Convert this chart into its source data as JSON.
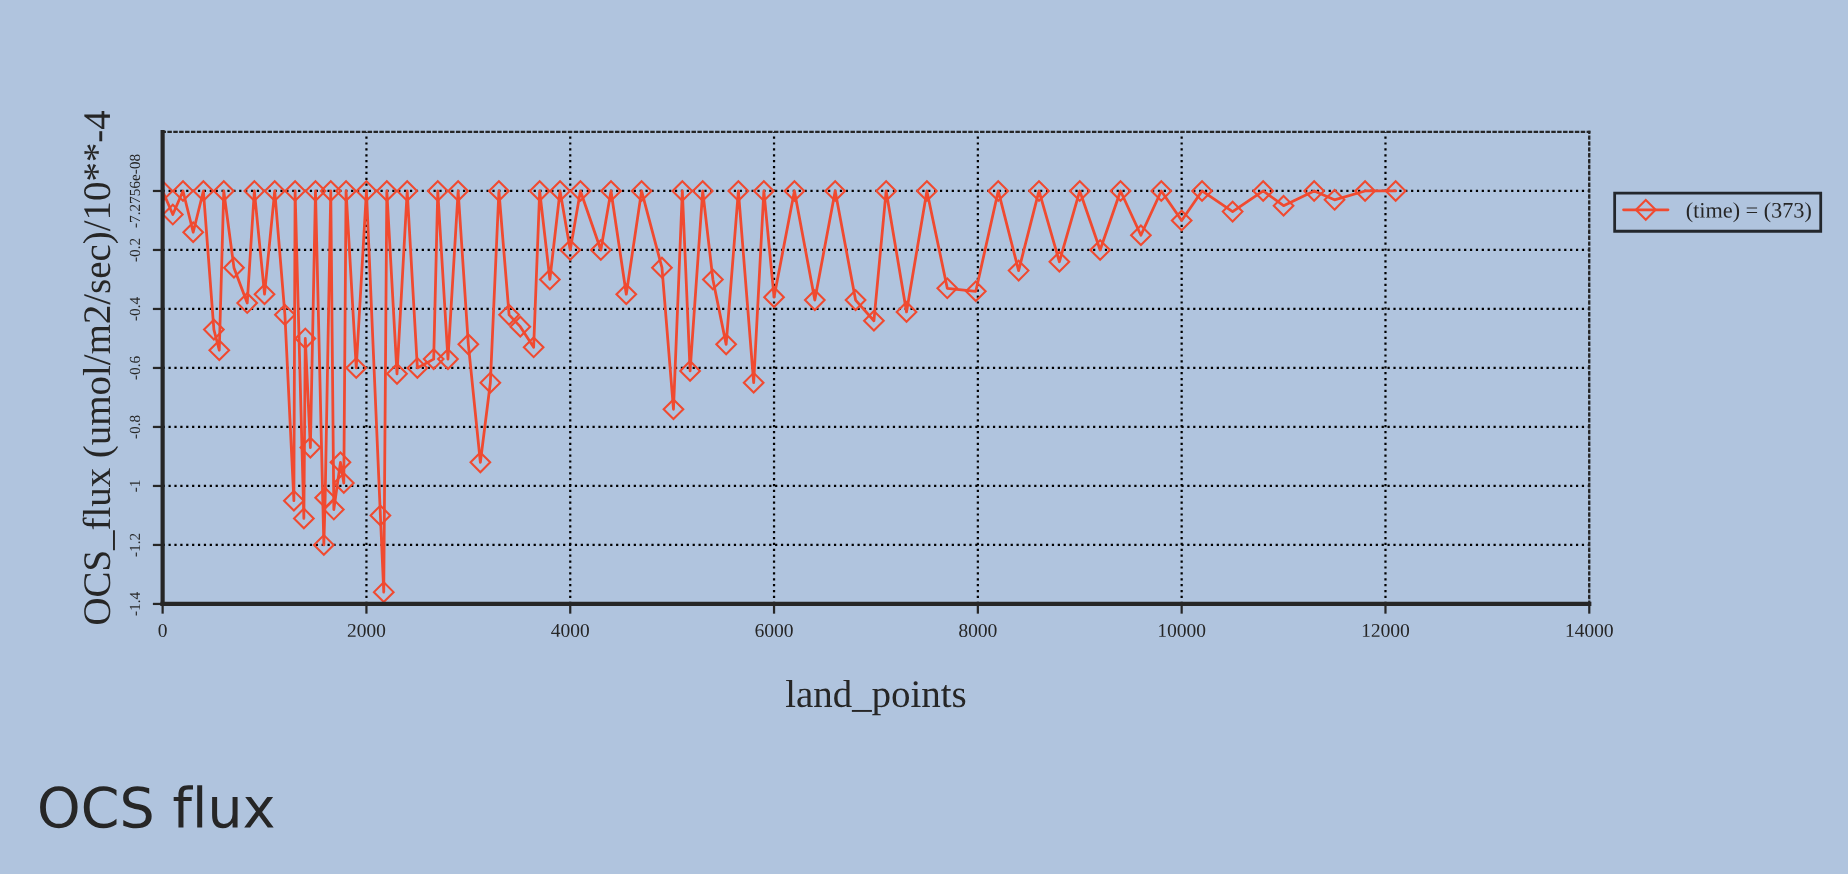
{
  "chart_data": {
    "type": "line",
    "title": "OCS flux",
    "xlabel": "land_points",
    "ylabel": "OCS_flux (umol/m2/sec)/10**-4",
    "x": [
      0,
      100,
      200,
      300,
      400,
      503,
      556,
      600,
      700,
      830,
      900,
      1000,
      1100,
      1200,
      1288,
      1300,
      1386,
      1400,
      1450,
      1500,
      1582,
      1595,
      1650,
      1680,
      1745,
      1778,
      1800,
      1900,
      2000,
      2137,
      2170,
      2200,
      2300,
      2400,
      2500,
      2660,
      2700,
      2800,
      2900,
      3000,
      3118,
      3216,
      3300,
      3400,
      3510,
      3641,
      3700,
      3800,
      3900,
      4000,
      4100,
      4300,
      4400,
      4550,
      4700,
      4900,
      5013,
      5100,
      5176,
      5300,
      5400,
      5530,
      5650,
      5800,
      5900,
      6000,
      6200,
      6400,
      6600,
      6800,
      6980,
      7100,
      7300,
      7500,
      7700,
      7980,
      8200,
      8400,
      8600,
      8800,
      9000,
      9200,
      9400,
      9600,
      9800,
      10000,
      10200,
      10500,
      10800,
      11000,
      11300,
      11500,
      11800,
      12100
    ],
    "series": [
      {
        "name": "(time) = (373)",
        "color": "#f04a30",
        "values": [
          0,
          -0.08,
          0,
          -0.14,
          0,
          -0.47,
          -0.54,
          0,
          -0.26,
          -0.38,
          0,
          -0.35,
          0,
          -0.42,
          -1.05,
          0,
          -1.11,
          -0.5,
          -0.87,
          0,
          -1.2,
          -1.04,
          0,
          -1.08,
          -0.92,
          -0.99,
          0,
          -0.6,
          0,
          -1.1,
          -1.36,
          0,
          -0.62,
          0,
          -0.6,
          -0.57,
          0,
          -0.57,
          0,
          -0.52,
          -0.92,
          -0.65,
          0,
          -0.42,
          -0.46,
          -0.53,
          0,
          -0.3,
          0,
          -0.2,
          0,
          -0.2,
          0,
          -0.35,
          0,
          -0.26,
          -0.74,
          0,
          -0.61,
          0,
          -0.3,
          -0.52,
          0,
          -0.65,
          0,
          -0.36,
          0,
          -0.37,
          0,
          -0.37,
          -0.44,
          0,
          -0.41,
          0,
          -0.33,
          -0.34,
          0,
          -0.27,
          0,
          -0.24,
          0,
          -0.2,
          0,
          -0.15,
          0,
          -0.1,
          0,
          -0.07,
          0,
          -0.05,
          0,
          -0.03,
          0,
          0
        ]
      }
    ],
    "xlim": [
      0,
      14000
    ],
    "xticks": [
      0,
      2000,
      4000,
      6000,
      8000,
      10000,
      12000,
      14000
    ],
    "ylim": [
      -1.4,
      0.2
    ],
    "yticks": [
      -1.4,
      -1.2,
      -1,
      -0.8,
      -0.6,
      -0.4,
      -0.2,
      {
        "value": -7.2756e-08,
        "label": "-7.2756e-08"
      }
    ],
    "grid": true,
    "legend": "right",
    "marker": "diamond",
    "line_style": "solid"
  }
}
